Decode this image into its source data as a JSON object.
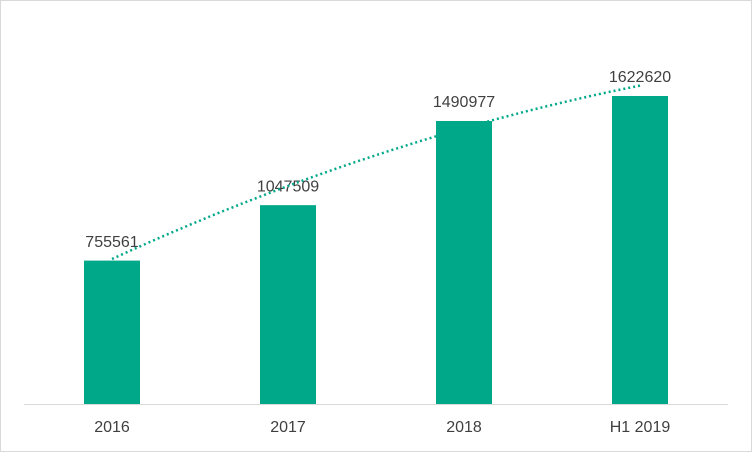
{
  "chart_data": {
    "type": "bar",
    "categories": [
      "2016",
      "2017",
      "2018",
      "H1 2019"
    ],
    "values": [
      755561,
      1047509,
      1490977,
      1622620
    ],
    "color": "#00a88a",
    "trendline": "polynomial"
  }
}
